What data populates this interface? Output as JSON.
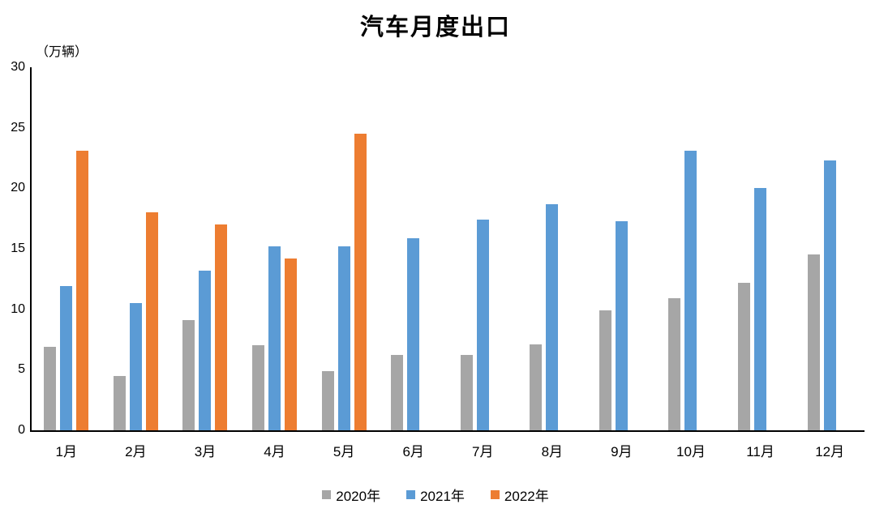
{
  "chart_data": {
    "type": "bar",
    "title": "汽车月度出口",
    "unit_label": "（万辆）",
    "categories": [
      "1月",
      "2月",
      "3月",
      "4月",
      "5月",
      "6月",
      "7月",
      "8月",
      "9月",
      "10月",
      "11月",
      "12月"
    ],
    "series": [
      {
        "name": "2020年",
        "color": "#a6a6a6",
        "values": [
          6.9,
          4.5,
          9.1,
          7.0,
          4.9,
          6.2,
          6.2,
          7.1,
          9.9,
          10.9,
          12.2,
          14.5
        ]
      },
      {
        "name": "2021年",
        "color": "#5b9bd5",
        "values": [
          11.9,
          10.5,
          13.2,
          15.2,
          15.2,
          15.9,
          17.4,
          18.7,
          17.3,
          23.1,
          20.0,
          22.3
        ]
      },
      {
        "name": "2022年",
        "color": "#ed7d31",
        "values": [
          23.1,
          18.0,
          17.0,
          14.2,
          24.5,
          null,
          null,
          null,
          null,
          null,
          null,
          null
        ]
      }
    ],
    "ylim": [
      0,
      30
    ],
    "yticks": [
      0,
      5,
      10,
      15,
      20,
      25,
      30
    ],
    "grid": false,
    "legend_position": "bottom",
    "axis_color": "#000000",
    "text_color": "#000000"
  }
}
